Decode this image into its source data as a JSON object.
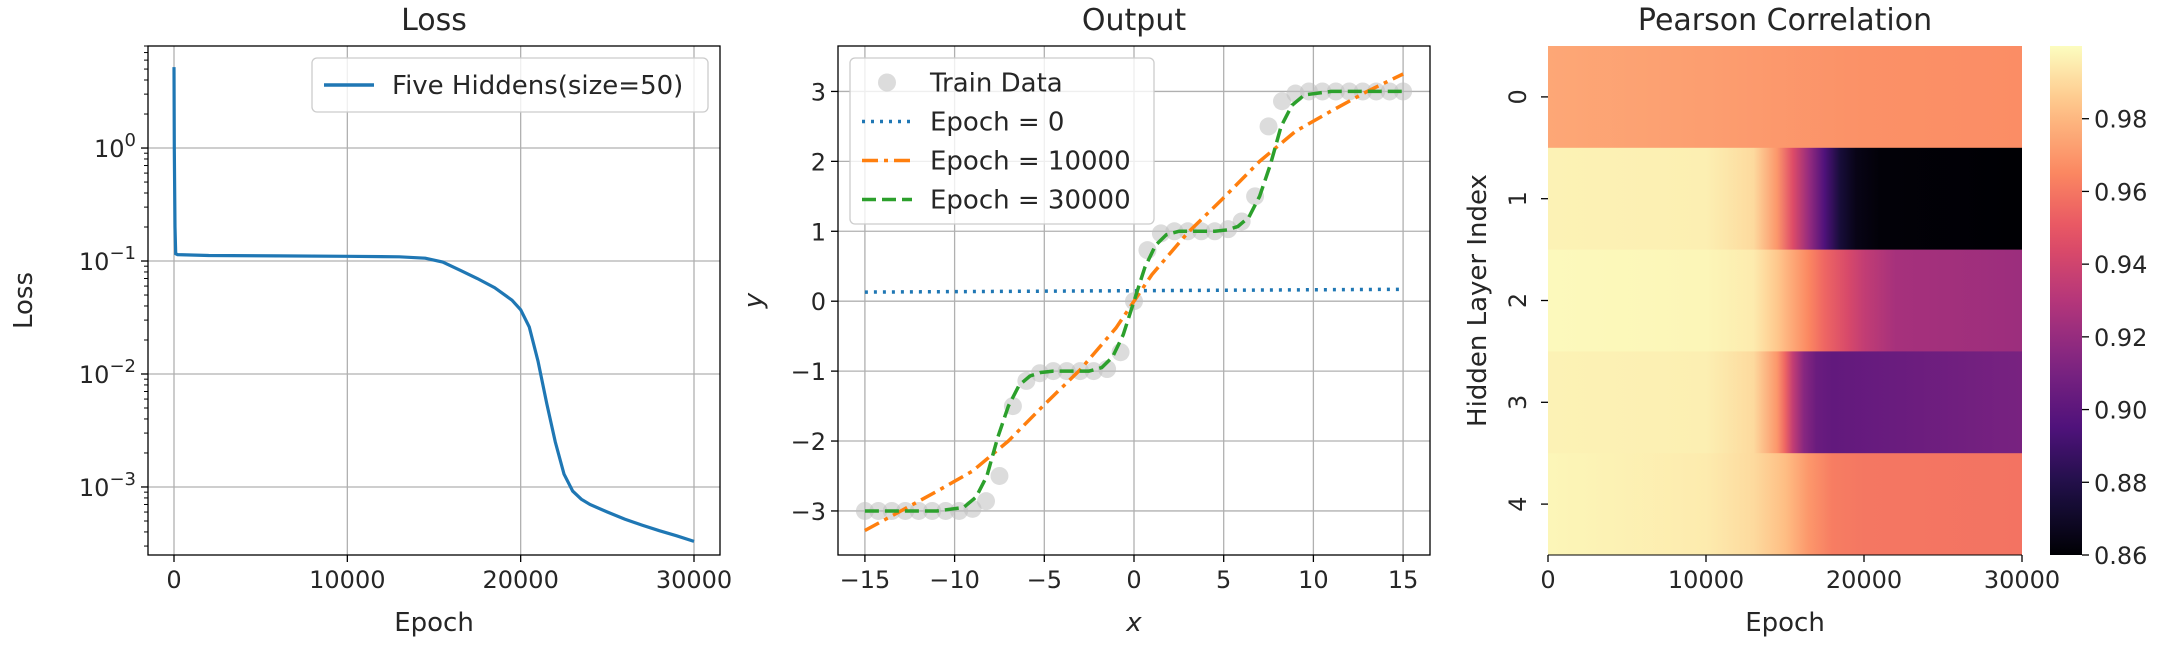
{
  "chart_data": [
    {
      "type": "line",
      "title": "Loss",
      "xlabel": "Epoch",
      "ylabel": "Loss",
      "yscale": "log",
      "xlim": [
        -1500,
        31500
      ],
      "ylim": [
        0.00025,
        8
      ],
      "x_ticks": [
        0,
        10000,
        20000,
        30000
      ],
      "x_tick_labels": [
        "0",
        "10000",
        "20000",
        "30000"
      ],
      "y_ticks": [
        0.001,
        0.01,
        0.1,
        1
      ],
      "y_tick_labels": [
        {
          "base": "10",
          "exp": "−3"
        },
        {
          "base": "10",
          "exp": "−2"
        },
        {
          "base": "10",
          "exp": "−1"
        },
        {
          "base": "10",
          "exp": "0"
        }
      ],
      "grid": true,
      "legend_position": "top-right",
      "series": [
        {
          "name": "Five Hiddens(size=50)",
          "color": "#1f77b4",
          "x": [
            0,
            20,
            60,
            100,
            200,
            2000,
            6000,
            10000,
            13000,
            14500,
            15500,
            16500,
            17500,
            18500,
            19500,
            20000,
            20500,
            21000,
            21500,
            22000,
            22500,
            23000,
            23500,
            24000,
            25000,
            26000,
            27000,
            28000,
            29000,
            30000
          ],
          "y": [
            5.2,
            1.0,
            0.2,
            0.116,
            0.114,
            0.112,
            0.111,
            0.11,
            0.109,
            0.106,
            0.098,
            0.083,
            0.07,
            0.058,
            0.045,
            0.037,
            0.026,
            0.013,
            0.0055,
            0.0025,
            0.0013,
            0.00092,
            0.00078,
            0.0007,
            0.0006,
            0.00052,
            0.00046,
            0.00041,
            0.00037,
            0.00033
          ]
        }
      ]
    },
    {
      "type": "line",
      "title": "Output",
      "xlabel": "x",
      "ylabel": "y",
      "xlim": [
        -16.5,
        16.5
      ],
      "ylim": [
        -3.63,
        3.65
      ],
      "x_ticks": [
        -15,
        -10,
        -5,
        0,
        5,
        10,
        15
      ],
      "x_tick_labels": [
        "−15",
        "−10",
        "−5",
        "0",
        "5",
        "10",
        "15"
      ],
      "y_ticks": [
        -3,
        -2,
        -1,
        0,
        1,
        2,
        3
      ],
      "y_tick_labels": [
        "−3",
        "−2",
        "−1",
        "0",
        "1",
        "2",
        "3"
      ],
      "grid": true,
      "legend_position": "top-left",
      "train_data": {
        "name": "Train Data",
        "color": "#c0c0c0",
        "x": [
          -15,
          -14.25,
          -13.5,
          -12.75,
          -12,
          -11.25,
          -10.5,
          -9.75,
          -9,
          -8.25,
          -7.5,
          -6.75,
          -6,
          -5.25,
          -4.5,
          -3.75,
          -3,
          -2.25,
          -1.5,
          -0.75,
          0,
          0.75,
          1.5,
          2.25,
          3,
          3.75,
          4.5,
          5.25,
          6,
          6.75,
          7.5,
          8.25,
          9,
          9.75,
          10.5,
          11.25,
          12,
          12.75,
          13.5,
          14.25,
          15
        ],
        "y": [
          -3,
          -3,
          -3,
          -3,
          -3,
          -3,
          -3,
          -3,
          -2.97,
          -2.86,
          -2.5,
          -1.5,
          -1.14,
          -1.03,
          -1,
          -1,
          -1,
          -1,
          -0.97,
          -0.73,
          0,
          0.73,
          0.97,
          1,
          1,
          1,
          1,
          1.03,
          1.14,
          1.5,
          2.5,
          2.86,
          2.97,
          3,
          3,
          3,
          3,
          3,
          3,
          3,
          3
        ]
      },
      "series": [
        {
          "name": "Epoch = 0",
          "color": "#1f77b4",
          "style": "dotted",
          "x": [
            -15,
            15
          ],
          "y": [
            0.13,
            0.17
          ]
        },
        {
          "name": "Epoch = 10000",
          "color": "#ff7f0e",
          "style": "dashdot",
          "x": [
            -15,
            -13,
            -11,
            -9,
            -7,
            -5,
            -3,
            -1,
            0,
            1,
            3,
            5,
            7,
            9,
            11,
            13,
            15
          ],
          "y": [
            -3.28,
            -3.0,
            -2.72,
            -2.43,
            -2.0,
            -1.48,
            -0.98,
            -0.38,
            0,
            0.38,
            0.98,
            1.48,
            2.0,
            2.43,
            2.72,
            3.0,
            3.25
          ]
        },
        {
          "name": "Epoch = 30000",
          "color": "#2ca02c",
          "style": "dashed",
          "x": [
            -15,
            -13,
            -11,
            -9.5,
            -8.8,
            -8.2,
            -7.6,
            -7,
            -6.4,
            -5.8,
            -5.2,
            -4.5,
            -3.5,
            -2.5,
            -1.8,
            -1.2,
            -0.6,
            0,
            0.6,
            1.2,
            1.8,
            2.5,
            3.5,
            4.5,
            5.2,
            5.8,
            6.4,
            7,
            7.6,
            8.2,
            8.8,
            9.5,
            11,
            13,
            15
          ],
          "y": [
            -3.0,
            -3.0,
            -3.0,
            -2.95,
            -2.8,
            -2.5,
            -1.95,
            -1.5,
            -1.2,
            -1.07,
            -1.02,
            -1.0,
            -1.0,
            -1.0,
            -0.95,
            -0.8,
            -0.48,
            0,
            0.48,
            0.8,
            0.95,
            1.0,
            1.0,
            1.0,
            1.02,
            1.07,
            1.2,
            1.5,
            1.95,
            2.5,
            2.8,
            2.95,
            3.0,
            3.0,
            3.0
          ]
        }
      ]
    },
    {
      "type": "heatmap",
      "title": "Pearson Correlation",
      "xlabel": "Epoch",
      "ylabel": "Hidden Layer Index",
      "xlim": [
        0,
        30000
      ],
      "x_ticks": [
        0,
        10000,
        20000,
        30000
      ],
      "x_tick_labels": [
        "0",
        "10000",
        "20000",
        "30000"
      ],
      "rows": [
        "0",
        "1",
        "2",
        "3",
        "4"
      ],
      "colorscale": "magma",
      "vmin": 0.86,
      "vmax": 1.0,
      "colorbar_ticks": [
        0.86,
        0.88,
        0.9,
        0.92,
        0.94,
        0.96,
        0.98
      ],
      "colorbar_tick_labels": [
        "0.86",
        "0.88",
        "0.90",
        "0.92",
        "0.94",
        "0.96",
        "0.98"
      ],
      "row_profiles": [
        [
          [
            0,
            0.975
          ],
          [
            10000,
            0.972
          ],
          [
            20000,
            0.968
          ],
          [
            30000,
            0.967
          ]
        ],
        [
          [
            0,
            0.997
          ],
          [
            10000,
            0.996
          ],
          [
            13000,
            0.99
          ],
          [
            14500,
            0.97
          ],
          [
            15500,
            0.945
          ],
          [
            16500,
            0.92
          ],
          [
            17500,
            0.895
          ],
          [
            18500,
            0.875
          ],
          [
            19500,
            0.865
          ],
          [
            21000,
            0.861
          ],
          [
            30000,
            0.86
          ]
        ],
        [
          [
            0,
            0.999
          ],
          [
            10000,
            0.998
          ],
          [
            13000,
            0.995
          ],
          [
            14500,
            0.985
          ],
          [
            15500,
            0.975
          ],
          [
            16500,
            0.965
          ],
          [
            17500,
            0.955
          ],
          [
            19000,
            0.943
          ],
          [
            20000,
            0.935
          ],
          [
            22000,
            0.925
          ],
          [
            30000,
            0.922
          ]
        ],
        [
          [
            0,
            0.997
          ],
          [
            10000,
            0.996
          ],
          [
            13000,
            0.99
          ],
          [
            14500,
            0.97
          ],
          [
            15000,
            0.955
          ],
          [
            15500,
            0.935
          ],
          [
            16200,
            0.915
          ],
          [
            17000,
            0.905
          ],
          [
            18000,
            0.902
          ],
          [
            30000,
            0.91
          ]
        ],
        [
          [
            0,
            0.998
          ],
          [
            10000,
            0.995
          ],
          [
            13000,
            0.99
          ],
          [
            15000,
            0.982
          ],
          [
            16500,
            0.97
          ],
          [
            18000,
            0.962
          ],
          [
            20000,
            0.96
          ],
          [
            30000,
            0.959
          ]
        ]
      ]
    }
  ]
}
